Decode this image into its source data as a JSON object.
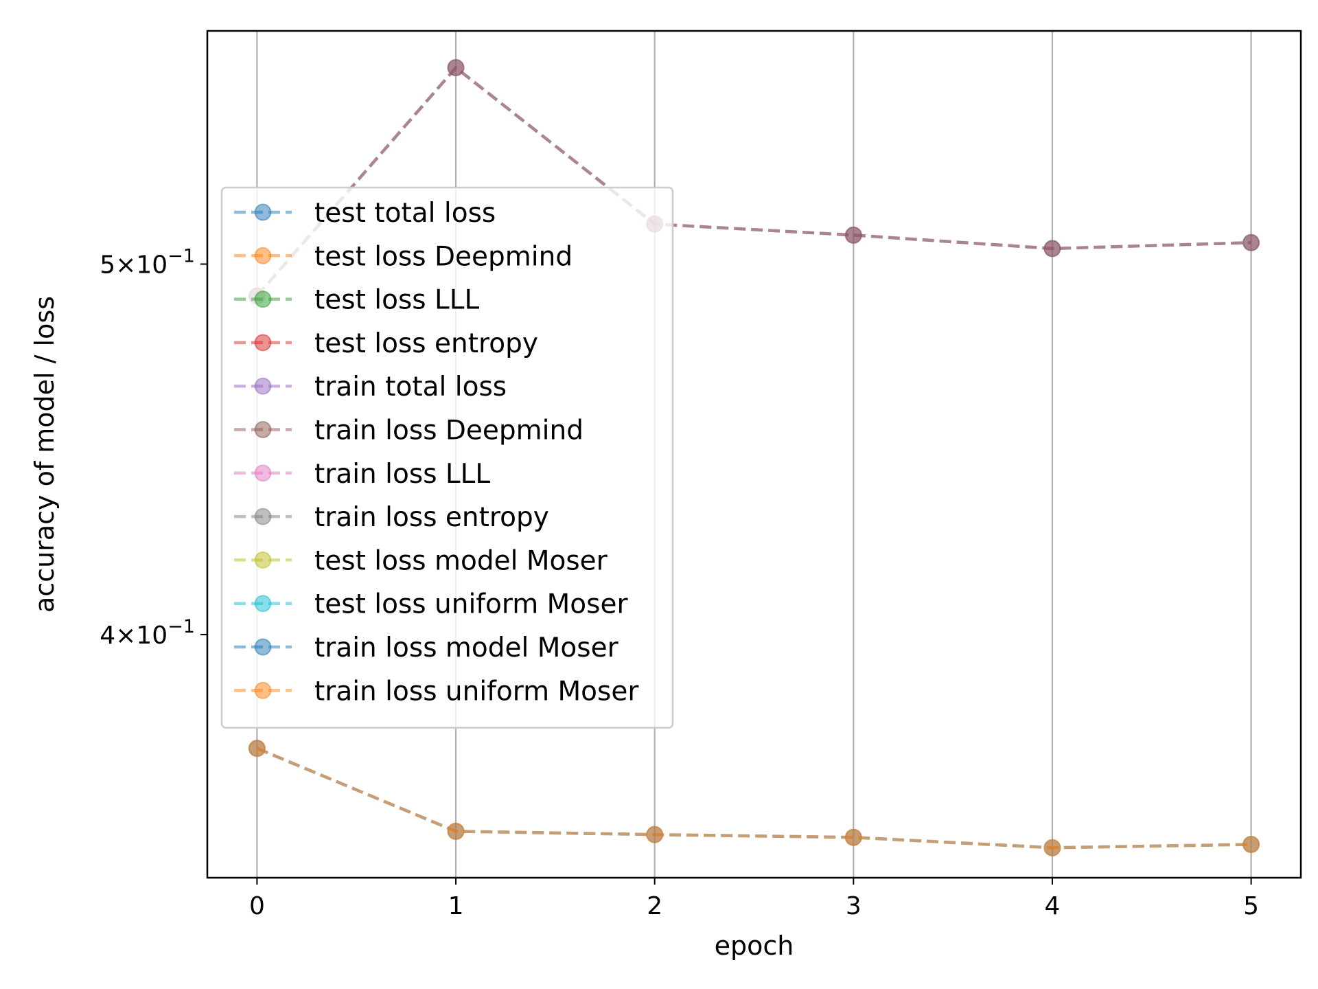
{
  "chart_data": {
    "type": "line",
    "title": "",
    "xlabel": "epoch",
    "ylabel": "accuracy of model / loss",
    "x": [
      0,
      1,
      2,
      3,
      4,
      5
    ],
    "xlim": [
      -0.25,
      5.25
    ],
    "ylim": [
      0.3455,
      0.5754
    ],
    "yscale": "log",
    "grid": "vertical",
    "legend_position": "center-left",
    "yticks": [
      {
        "value": 0.5,
        "base": "5",
        "exp": "−1"
      },
      {
        "value": 0.4,
        "base": "4",
        "exp": "−1"
      }
    ],
    "xticks": [
      "0",
      "1",
      "2",
      "3",
      "4",
      "5"
    ],
    "series": [
      {
        "name": "test total loss",
        "color": "#1f77b4",
        "values": null
      },
      {
        "name": "test loss Deepmind",
        "color": "#ff7f0e",
        "values": null
      },
      {
        "name": "test loss LLL",
        "color": "#2ca02c",
        "values": null
      },
      {
        "name": "test loss entropy",
        "color": "#d62728",
        "values": null
      },
      {
        "name": "train total loss",
        "color": "#9467bd",
        "values": [
          0.4905,
          0.5628,
          0.5122,
          0.5088,
          0.5047,
          0.5065
        ]
      },
      {
        "name": "train loss Deepmind",
        "color": "#8c564b",
        "values": [
          0.4905,
          0.5628,
          0.5122,
          0.5088,
          0.5047,
          0.5065
        ]
      },
      {
        "name": "train loss LLL",
        "color": "#e377c2",
        "values": null
      },
      {
        "name": "train loss entropy",
        "color": "#7f7f7f",
        "values": null
      },
      {
        "name": "test loss model Moser",
        "color": "#bcbd22",
        "values": null
      },
      {
        "name": "test loss uniform Moser",
        "color": "#17becf",
        "values": null
      },
      {
        "name": "train loss model Moser",
        "color": "#1f77b4",
        "values": [
          0.3735,
          0.3553,
          0.3546,
          0.354,
          0.3518,
          0.3525
        ]
      },
      {
        "name": "train loss uniform Moser",
        "color": "#ff7f0e",
        "values": [
          0.3735,
          0.3553,
          0.3546,
          0.354,
          0.3518,
          0.3525
        ]
      }
    ]
  }
}
